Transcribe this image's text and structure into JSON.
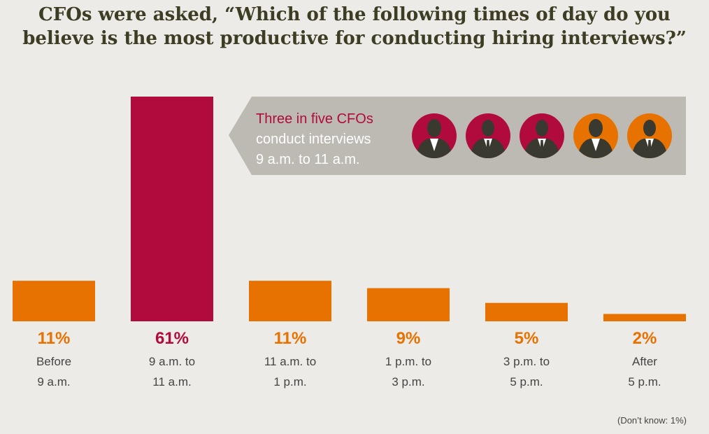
{
  "chart_data": {
    "type": "bar",
    "title_lines": [
      "CFOs were asked, “Which of the following times of day do you",
      "believe is the most productive for conducting hiring interviews?”"
    ],
    "categories": [
      [
        "Before",
        "9 a.m."
      ],
      [
        "9 a.m. to",
        "11 a.m."
      ],
      [
        "11 a.m. to",
        "1 p.m."
      ],
      [
        "1 p.m. to",
        "3 p.m."
      ],
      [
        "3 p.m. to",
        "5 p.m."
      ],
      [
        "After",
        "5 p.m."
      ]
    ],
    "values": [
      11,
      61,
      11,
      9,
      5,
      2
    ],
    "value_labels": [
      "11%",
      "61%",
      "11%",
      "9%",
      "5%",
      "2%"
    ],
    "highlight_index": 1,
    "ylim": [
      0,
      61
    ],
    "grid": false,
    "colors": {
      "default": "#e87200",
      "highlight": "#b00b3c"
    }
  },
  "callout": {
    "lines": [
      "Three in five CFOs",
      "conduct interviews",
      "9 a.m. to 11 a.m."
    ],
    "colors": {
      "background": "#bdbab3",
      "highlight_text": "#b00b3c",
      "text": "#ffffff"
    },
    "avatars": [
      {
        "icon": "woman-silhouette-icon",
        "color": "#b00b3c"
      },
      {
        "icon": "man-silhouette-icon",
        "color": "#b00b3c"
      },
      {
        "icon": "man-silhouette-icon",
        "color": "#b00b3c"
      },
      {
        "icon": "woman-silhouette-icon",
        "color": "#e87200"
      },
      {
        "icon": "man-silhouette-icon",
        "color": "#e87200"
      }
    ]
  },
  "footnote": {
    "prefix": "(Don’t know: ",
    "value": "1%",
    "suffix": ")"
  }
}
